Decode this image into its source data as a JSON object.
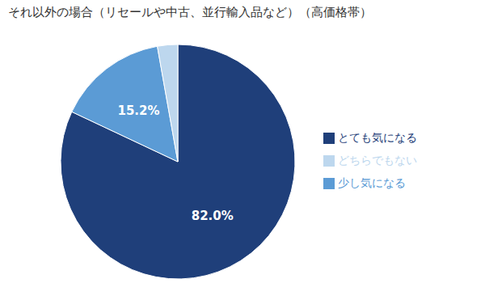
{
  "chart_data": {
    "type": "pie",
    "title": "それ以外の場合（リセールや中古、並行輸入品など）（高価格帯）",
    "categories": [
      "とても気になる",
      "少し気になる",
      "どちらでもない"
    ],
    "values": [
      82.0,
      15.2,
      2.8
    ],
    "value_labels": [
      "82.0%",
      "15.2%",
      null
    ],
    "data_labels": true,
    "colors": [
      "#1f3f7a",
      "#5b9bd5",
      "#bdd7ee"
    ],
    "legend": "right"
  }
}
